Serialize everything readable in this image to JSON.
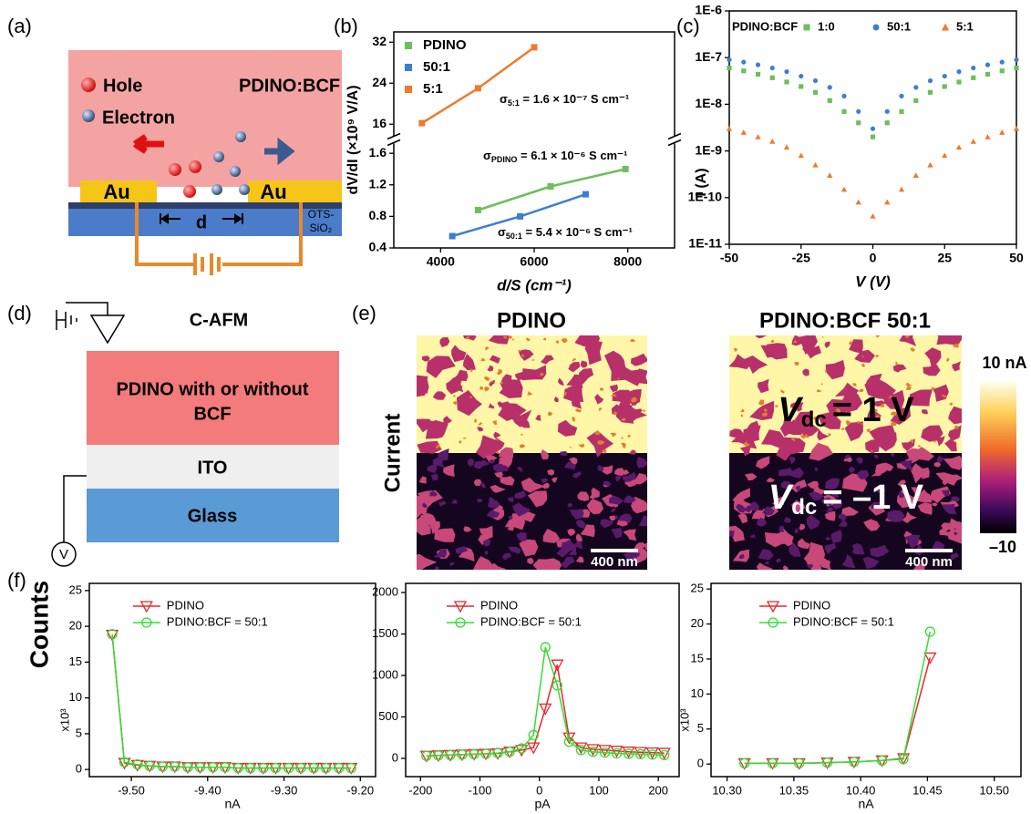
{
  "panel_labels": [
    "(a)",
    "(b)",
    "(c)",
    "(d)",
    "(e)",
    "(f)"
  ],
  "diagram_a": {
    "material": "PDINO:BCF",
    "hole": "Hole",
    "electron": "Electron",
    "electrode_left": "Au",
    "electrode_right": "Au",
    "gap": "d",
    "substrate_line1": "OTS-",
    "substrate_line2": "SiO₂"
  },
  "diagram_d": {
    "title": "C-AFM",
    "layer_top_line1": "PDINO with or without",
    "layer_top_line2": "BCF",
    "layer_middle": "ITO",
    "layer_bottom": "Glass",
    "meter": "V"
  },
  "images_e": {
    "title_left": "PDINO",
    "title_right": "PDINO:BCF 50:1",
    "row_label": "Current",
    "scale_bar_left": "400 nm",
    "scale_bar_right": "400 nm",
    "bias_symbol": "V",
    "bias_subscript": "dc",
    "bias_top": "= 1 V",
    "bias_bottom": "= –1 V",
    "colorbar_max": "10 nA",
    "colorbar_min": "–10"
  },
  "chart_data": [
    {
      "type": "line",
      "xlabel": "d/S (cm⁻¹)",
      "ylabel": "dV/dI (×10⁹ V/A)",
      "xlim": [
        3000,
        9000
      ],
      "xticks": [
        4000,
        6000,
        8000
      ],
      "ylim": [
        0.4,
        34
      ],
      "ybreak": [
        1.7,
        14
      ],
      "yticks": [
        0.4,
        0.8,
        1.2,
        1.6,
        16,
        24,
        32
      ],
      "legend": "upper left",
      "series": [
        {
          "name": "PDINO",
          "color": "#6cbf5b",
          "marker": "square",
          "x": [
            4800,
            6350,
            7950
          ],
          "values": [
            0.88,
            1.18,
            1.4
          ]
        },
        {
          "name": "50:1",
          "color": "#3b7fd0",
          "marker": "square",
          "x": [
            4250,
            5700,
            7100
          ],
          "values": [
            0.55,
            0.8,
            1.08
          ]
        },
        {
          "name": "5:1",
          "color": "#f07a2a",
          "marker": "square",
          "x": [
            3600,
            4800,
            6000
          ],
          "values": [
            16.2,
            23,
            31
          ]
        }
      ],
      "annotations": [
        {
          "symbol": "σ",
          "sub": "5:1",
          "text": " = 1.6 × 10⁻⁷ S cm⁻¹"
        },
        {
          "symbol": "σ",
          "sub": "PDINO",
          "text": " = 6.1 × 10⁻⁶ S cm⁻¹"
        },
        {
          "symbol": "σ",
          "sub": "50:1",
          "text": " = 5.4 × 10⁻⁶ S cm⁻¹"
        }
      ]
    },
    {
      "type": "scatter",
      "xlabel": "V (V)",
      "ylabel": "I (A)",
      "ylog": true,
      "xlim": [
        -50,
        50
      ],
      "xticks": [
        -50,
        -25,
        0,
        25,
        50
      ],
      "ylim": [
        1e-11,
        1e-06
      ],
      "yticks": [
        {
          "value": 1e-11,
          "label": "1E-11"
        },
        {
          "value": 1e-10,
          "label": "1E-10"
        },
        {
          "value": 1e-09,
          "label": "1E-9"
        },
        {
          "value": 1e-08,
          "label": "1E-8"
        },
        {
          "value": 1e-07,
          "label": "1E-7"
        },
        {
          "value": 1e-06,
          "label": "1E-6"
        }
      ],
      "legend": "top",
      "legend_title": "PDINO:BCF",
      "x": [
        -50,
        -45,
        -40,
        -35,
        -30,
        -25,
        -20,
        -15,
        -10,
        -5,
        0,
        5,
        10,
        15,
        20,
        25,
        30,
        35,
        40,
        45,
        50
      ],
      "series": [
        {
          "name": "1:0",
          "color": "#6cbf5b",
          "marker": "square",
          "values": [
            6e-08,
            5.2e-08,
            4.4e-08,
            3.7e-08,
            3e-08,
            2.4e-08,
            1.8e-08,
            1.2e-08,
            7e-09,
            4e-09,
            2e-09,
            4e-09,
            7e-09,
            1.2e-08,
            1.8e-08,
            2.4e-08,
            3e-08,
            3.7e-08,
            4.4e-08,
            5.2e-08,
            6e-08
          ]
        },
        {
          "name": "50:1",
          "color": "#3b7fd0",
          "marker": "circle",
          "values": [
            9e-08,
            8e-08,
            7e-08,
            6e-08,
            5e-08,
            4e-08,
            3.2e-08,
            2.3e-08,
            1.5e-08,
            7e-09,
            3e-09,
            7e-09,
            1.5e-08,
            2.3e-08,
            3.2e-08,
            4e-08,
            5e-08,
            6e-08,
            7e-08,
            8e-08,
            9e-08
          ]
        },
        {
          "name": "5:1",
          "color": "#f07a2a",
          "marker": "triangle",
          "values": [
            3e-09,
            2.5e-09,
            2e-09,
            1.6e-09,
            1.2e-09,
            8e-10,
            5e-10,
            3e-10,
            1.5e-10,
            8e-11,
            4e-11,
            8e-11,
            1.5e-10,
            3e-10,
            5e-10,
            8e-10,
            1.2e-09,
            1.6e-09,
            2e-09,
            2.5e-09,
            3e-09
          ]
        }
      ]
    },
    {
      "type": "line",
      "xlabel": "nA",
      "ylabel": "Counts",
      "yunit": "x10³",
      "xlim": [
        -9.555,
        -9.18
      ],
      "xticks": [
        {
          "value": -9.5,
          "label": "-9.50"
        },
        {
          "value": -9.4,
          "label": "-9.40"
        },
        {
          "value": -9.3,
          "label": "-9.30"
        },
        {
          "value": -9.2,
          "label": "-9.20"
        }
      ],
      "ylim": [
        -1,
        26
      ],
      "yticks": [
        0,
        5,
        10,
        15,
        20,
        25
      ],
      "legend": "upper center",
      "x": [
        -9.525,
        -9.509,
        -9.492,
        -9.476,
        -9.459,
        -9.443,
        -9.426,
        -9.41,
        -9.393,
        -9.377,
        -9.36,
        -9.344,
        -9.327,
        -9.311,
        -9.294,
        -9.278,
        -9.261,
        -9.245,
        -9.228,
        -9.212
      ],
      "series": [
        {
          "name": "PDINO",
          "color": "#e8262c",
          "marker": "triangle-open-down",
          "values": [
            18.8,
            0.9,
            0.6,
            0.5,
            0.4,
            0.4,
            0.3,
            0.3,
            0.3,
            0.3,
            0.2,
            0.2,
            0.2,
            0.2,
            0.2,
            0.2,
            0.2,
            0.2,
            0.2,
            0.2
          ]
        },
        {
          "name": "PDINO:BCF = 50:1",
          "color": "#33dd33",
          "marker": "circle-open",
          "values": [
            18.9,
            1.0,
            0.7,
            0.5,
            0.4,
            0.4,
            0.3,
            0.3,
            0.3,
            0.3,
            0.2,
            0.2,
            0.2,
            0.2,
            0.2,
            0.2,
            0.2,
            0.2,
            0.2,
            0.2
          ]
        }
      ]
    },
    {
      "type": "line",
      "xlabel": "pA",
      "xlim": [
        -225,
        235
      ],
      "xticks": [
        -200,
        -100,
        0,
        100,
        200
      ],
      "ylim": [
        -220,
        2110
      ],
      "yticks": [
        0,
        500,
        1000,
        1500,
        2000
      ],
      "legend": "upper center",
      "x": [
        -190,
        -170,
        -150,
        -130,
        -110,
        -90,
        -70,
        -50,
        -30,
        -10,
        10,
        30,
        50,
        70,
        90,
        110,
        130,
        150,
        170,
        190,
        210
      ],
      "series": [
        {
          "name": "PDINO",
          "color": "#e8262c",
          "marker": "triangle-open-down",
          "values": [
            30,
            35,
            40,
            45,
            50,
            55,
            60,
            80,
            100,
            130,
            600,
            1130,
            250,
            130,
            110,
            100,
            90,
            80,
            75,
            70,
            65
          ]
        },
        {
          "name": "PDINO:BCF = 50:1",
          "color": "#33dd33",
          "marker": "circle-open",
          "values": [
            30,
            35,
            40,
            45,
            50,
            55,
            65,
            80,
            120,
            280,
            1340,
            880,
            200,
            100,
            80,
            70,
            60,
            55,
            50,
            45,
            40
          ]
        }
      ]
    },
    {
      "type": "line",
      "xlabel": "nA",
      "yunit": "x10³",
      "xlim": [
        10.288,
        10.52
      ],
      "xticks": [
        {
          "value": 10.3,
          "label": "10.30"
        },
        10.35,
        {
          "value": 10.4,
          "label": "10.40"
        },
        10.45,
        {
          "value": 10.5,
          "label": "10.50"
        }
      ],
      "ylim": [
        -1.8,
        25.8
      ],
      "yticks": [
        0,
        5,
        10,
        15,
        20,
        25
      ],
      "legend": "upper center",
      "x": [
        10.313,
        10.334,
        10.354,
        10.375,
        10.395,
        10.416,
        10.432,
        10.452
      ],
      "series": [
        {
          "name": "PDINO",
          "color": "#e8262c",
          "marker": "triangle-open-down",
          "values": [
            0.1,
            0.1,
            0.1,
            0.2,
            0.3,
            0.5,
            0.8,
            15.2
          ]
        },
        {
          "name": "PDINO:BCF = 50:1",
          "color": "#33dd33",
          "marker": "circle-open",
          "values": [
            0.1,
            0.1,
            0.1,
            0.2,
            0.3,
            0.5,
            0.7,
            18.9
          ]
        }
      ]
    }
  ]
}
